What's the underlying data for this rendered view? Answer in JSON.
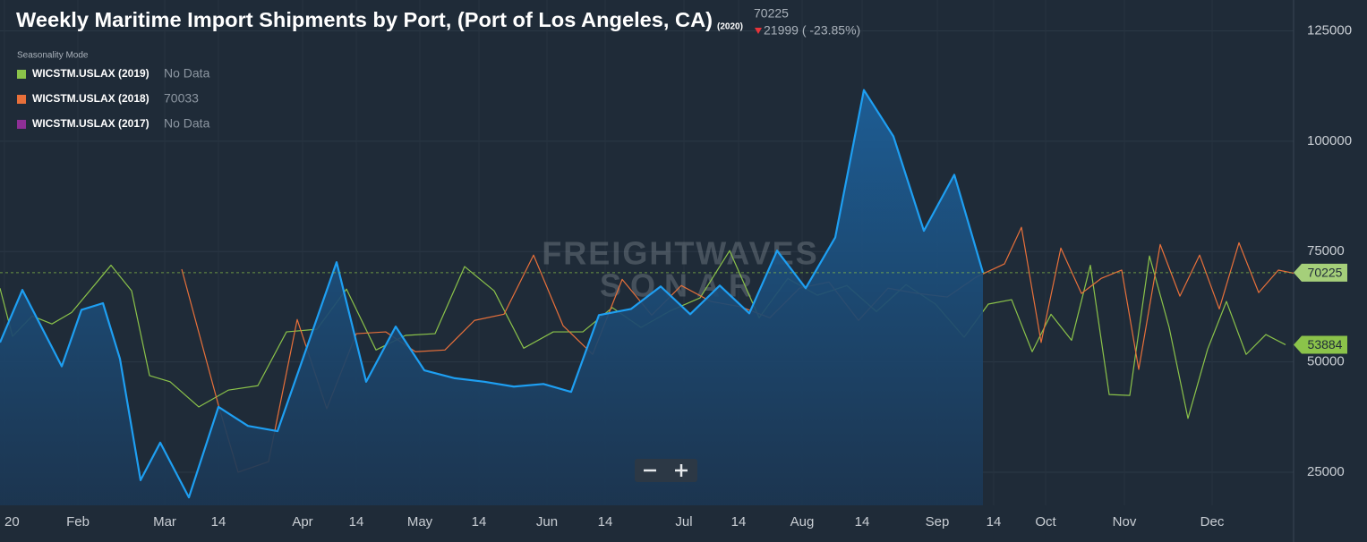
{
  "chart_data": {
    "type": "line",
    "title": "Weekly Maritime Import Shipments by Port, (Port of Los Angeles, CA)",
    "title_suffix": "(2020)",
    "header_value": 70225,
    "change": "21999 ( -23.85%)",
    "legend_title": "Seasonality Mode",
    "watermark": [
      "FREIGHTWAVES",
      "SONAR"
    ],
    "xlim": [
      0,
      43.35
    ],
    "ylim": [
      17500,
      132000
    ],
    "xticks": [
      {
        "value": 0.15,
        "label": "20"
      },
      {
        "value": 2.61,
        "label": "Feb"
      },
      {
        "value": 5.52,
        "label": "Mar"
      },
      {
        "value": 7.32,
        "label": "14"
      },
      {
        "value": 10.14,
        "label": "Apr"
      },
      {
        "value": 11.94,
        "label": "14"
      },
      {
        "value": 14.07,
        "label": "May"
      },
      {
        "value": 16.05,
        "label": "14"
      },
      {
        "value": 18.33,
        "label": "Jun"
      },
      {
        "value": 20.28,
        "label": "14"
      },
      {
        "value": 22.92,
        "label": "Jul"
      },
      {
        "value": 24.75,
        "label": "14"
      },
      {
        "value": 26.88,
        "label": "Aug"
      },
      {
        "value": 28.89,
        "label": "14"
      },
      {
        "value": 31.41,
        "label": "Sep"
      },
      {
        "value": 33.3,
        "label": "14"
      },
      {
        "value": 35.04,
        "label": "Oct"
      },
      {
        "value": 37.68,
        "label": "Nov"
      },
      {
        "value": 40.62,
        "label": "Dec"
      }
    ],
    "yticks": [
      25000,
      50000,
      75000,
      100000,
      125000
    ],
    "grid": true,
    "series": [
      {
        "color": "#1e9ff2",
        "area": true,
        "x": [
          0,
          0.75,
          2.07,
          2.73,
          3.45,
          4.02,
          4.71,
          5.37,
          6.33,
          7.32,
          8.31,
          9.3,
          11.28,
          12.27,
          13.26,
          14.22,
          15.24,
          16.23,
          17.22,
          18.21,
          19.14,
          20.07,
          21.15,
          22.14,
          23.13,
          24.12,
          25.11,
          26.04,
          27,
          27.99,
          28.95,
          29.94,
          30.96,
          31.98,
          32.94
        ],
        "values": [
          54400,
          66300,
          49000,
          61800,
          63300,
          50700,
          23200,
          31700,
          19300,
          39800,
          35500,
          34300,
          72600,
          45500,
          58000,
          48100,
          46300,
          45500,
          44400,
          45000,
          43200,
          60600,
          62000,
          67100,
          60800,
          67300,
          61000,
          75200,
          66700,
          78200,
          111600,
          101100,
          79700,
          92400,
          70225
        ]
      },
      {
        "name": "WICSTM.USLAX (2019)",
        "color": "#8bc34a",
        "legend_value": "No Data",
        "x": [
          0,
          0.42,
          1.08,
          1.74,
          2.4,
          3.72,
          4.41,
          5.01,
          5.7,
          6.66,
          7.65,
          8.64,
          9.6,
          10.62,
          11.61,
          12.6,
          13.59,
          14.58,
          15.57,
          16.56,
          17.55,
          18.54,
          19.53,
          20.52,
          21.48,
          22.47,
          23.46,
          24.45,
          25.44,
          26.4,
          27.39,
          28.38,
          29.37,
          30.36,
          31.35,
          32.31,
          33.12,
          33.9,
          34.59,
          35.22,
          35.91,
          36.54,
          37.17,
          37.86,
          38.52,
          39.18,
          39.81,
          40.47,
          41.1,
          41.76,
          42.42,
          43.08
        ],
        "values": [
          66700,
          55800,
          60400,
          58600,
          61200,
          71900,
          66100,
          46900,
          45500,
          39800,
          43600,
          44600,
          56800,
          57400,
          66500,
          52700,
          56000,
          56400,
          71600,
          66100,
          53100,
          56800,
          56800,
          62300,
          57800,
          61600,
          64500,
          75200,
          60000,
          68900,
          65100,
          67300,
          61400,
          67500,
          63100,
          55600,
          63100,
          64100,
          52300,
          60800,
          54900,
          71900,
          42600,
          42400,
          74000,
          57800,
          37200,
          52900,
          63700,
          51700,
          56200,
          53884
        ]
      },
      {
        "name": "WICSTM.USLAX (2018)",
        "color": "#e8703a",
        "legend_value": 70033,
        "x": [
          6.09,
          7.32,
          7.98,
          9,
          9.96,
          10.95,
          11.94,
          12.93,
          13.92,
          14.91,
          15.9,
          16.89,
          17.88,
          18.87,
          19.86,
          20.85,
          21.84,
          22.83,
          23.82,
          24.81,
          25.8,
          26.79,
          27.78,
          28.77,
          29.76,
          30.75,
          31.74,
          32.73,
          33.66,
          34.23,
          34.89,
          35.55,
          36.24,
          36.9,
          37.59,
          38.16,
          38.88,
          39.54,
          40.2,
          40.86,
          41.52,
          42.18,
          42.84,
          43.35
        ],
        "values": [
          71000,
          40200,
          25000,
          27400,
          59600,
          39400,
          56400,
          56800,
          52300,
          52700,
          59400,
          60800,
          74200,
          58200,
          51700,
          68700,
          60600,
          67300,
          63700,
          62500,
          60000,
          66700,
          68100,
          59400,
          66700,
          65500,
          64700,
          69300,
          72200,
          80500,
          54400,
          75800,
          65500,
          68900,
          70800,
          48300,
          76600,
          64900,
          74200,
          62000,
          77000,
          65700,
          70800,
          70100
        ]
      },
      {
        "name": "WICSTM.USLAX (2017)",
        "color": "#8e2f96",
        "legend_value": "No Data",
        "x": [],
        "values": []
      }
    ]
  }
}
